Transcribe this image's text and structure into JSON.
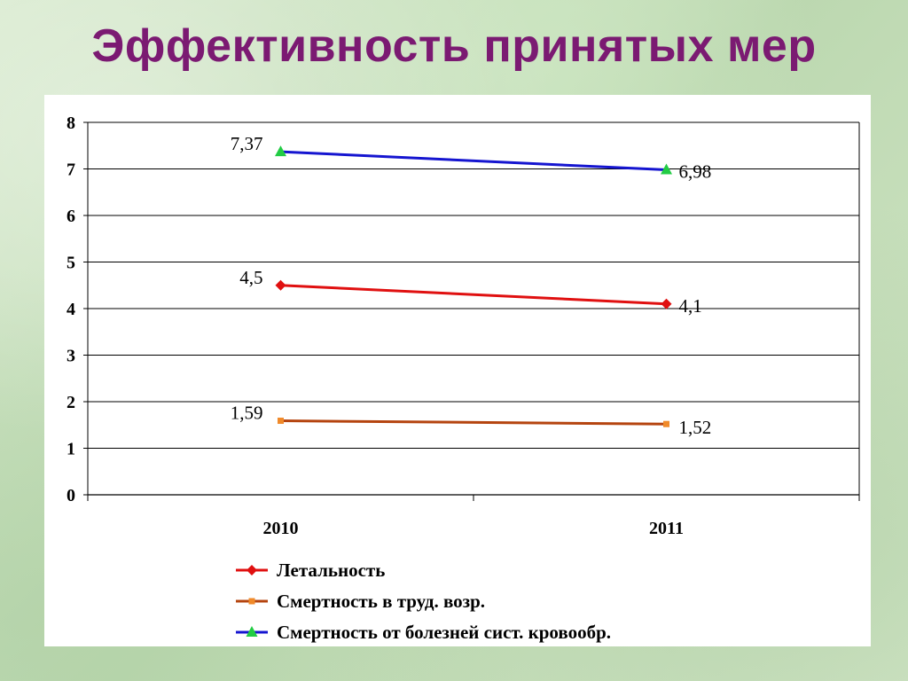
{
  "slide": {
    "title": "Эффективность принятых мер"
  },
  "chart_data": {
    "type": "line",
    "title": "",
    "xlabel": "",
    "ylabel": "",
    "categories": [
      "2010",
      "2011"
    ],
    "ylim": [
      0,
      8
    ],
    "yticks": [
      "0",
      "1",
      "2",
      "3",
      "4",
      "5",
      "6",
      "7",
      "8"
    ],
    "grid": true,
    "legend_position": "bottom",
    "series": [
      {
        "name": "Летальность",
        "values": [
          4.5,
          4.1
        ],
        "labels": [
          "4,5",
          "4,1"
        ],
        "color": "#e01010",
        "marker": "diamond",
        "marker_color": "#e01010"
      },
      {
        "name": "Смертность в труд. возр.",
        "values": [
          1.59,
          1.52
        ],
        "labels": [
          "1,59",
          "1,52"
        ],
        "color": "#b5440f",
        "marker": "square",
        "marker_color": "#f08a2a"
      },
      {
        "name": "Смертность от болезней сист. кровообр.",
        "values": [
          7.37,
          6.98
        ],
        "labels": [
          "7,37",
          "6,98"
        ],
        "color": "#1515d0",
        "marker": "triangle",
        "marker_color": "#22cc44"
      }
    ]
  }
}
